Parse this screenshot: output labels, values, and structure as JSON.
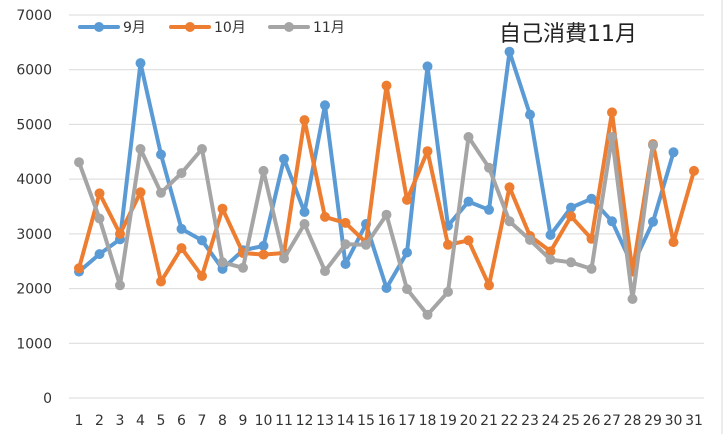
{
  "chart_data": {
    "type": "line",
    "title": "自己消費11月",
    "xlabel": "",
    "ylabel": "",
    "categories": [
      "1",
      "2",
      "3",
      "4",
      "5",
      "6",
      "7",
      "8",
      "9",
      "10",
      "11",
      "12",
      "13",
      "14",
      "15",
      "16",
      "17",
      "18",
      "19",
      "20",
      "21",
      "22",
      "23",
      "24",
      "25",
      "26",
      "27",
      "28",
      "29",
      "30",
      "31"
    ],
    "ylim": [
      0,
      7000
    ],
    "yticks": [
      0,
      1000,
      2000,
      3000,
      4000,
      5000,
      6000,
      7000
    ],
    "grid": "horizontal",
    "legend_position": "top-left",
    "series": [
      {
        "name": "9月",
        "color": "#5B9BD5",
        "values": [
          2310,
          2630,
          2900,
          6120,
          4450,
          3090,
          2880,
          2360,
          2700,
          2780,
          4370,
          3400,
          5350,
          2450,
          3180,
          2010,
          2660,
          6060,
          3150,
          3590,
          3440,
          6330,
          5180,
          2980,
          3480,
          3640,
          3230,
          2420,
          3220,
          4490,
          null
        ]
      },
      {
        "name": "10月",
        "color": "#ED7D31",
        "values": [
          2370,
          3740,
          3000,
          3760,
          2130,
          2740,
          2230,
          3460,
          2650,
          2620,
          2650,
          5080,
          3310,
          3200,
          2840,
          5710,
          3620,
          4510,
          2800,
          2880,
          2060,
          3850,
          2960,
          2680,
          3320,
          2910,
          5220,
          2310,
          4640,
          2850,
          4150
        ]
      },
      {
        "name": "11月",
        "color": "#A5A5A5",
        "values": [
          4310,
          3280,
          2060,
          4550,
          3750,
          4110,
          4550,
          2480,
          2380,
          4150,
          2550,
          3180,
          2320,
          2810,
          2800,
          3350,
          1990,
          1520,
          1940,
          4770,
          4210,
          3230,
          2890,
          2530,
          2480,
          2360,
          4770,
          1810,
          4620,
          null,
          null
        ]
      }
    ]
  }
}
